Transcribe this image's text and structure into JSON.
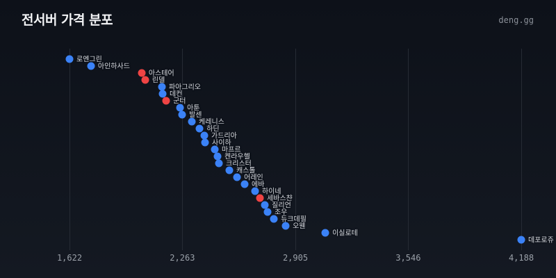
{
  "header": {
    "title": "전서버 가격 분포",
    "brand": "deng.gg"
  },
  "colors": {
    "background": "#0d1119",
    "normal": "#3b82f6",
    "highlight": "#ef4444",
    "grid": "#262b34",
    "tick_text": "#9aa0a8"
  },
  "chart_data": {
    "type": "scatter",
    "title": "전서버 가격 분포",
    "xlabel": "",
    "ylabel": "",
    "xlim": [
      1622,
      4188
    ],
    "xticks": [
      "1,622",
      "2,263",
      "2,905",
      "3,546",
      "4,188"
    ],
    "xtick_values": [
      1622,
      2263,
      2905,
      3546,
      4188
    ],
    "grid": "vertical",
    "legend": "none",
    "points": [
      {
        "name": "로엔그린",
        "value": 1622,
        "highlight": false
      },
      {
        "name": "아인하사드",
        "value": 1744,
        "highlight": false
      },
      {
        "name": "아스테어",
        "value": 2032,
        "highlight": true
      },
      {
        "name": "린델",
        "value": 2052,
        "highlight": true
      },
      {
        "name": "파아그리오",
        "value": 2147,
        "highlight": false
      },
      {
        "name": "데컨",
        "value": 2151,
        "highlight": false
      },
      {
        "name": "군터",
        "value": 2171,
        "highlight": true
      },
      {
        "name": "아툰",
        "value": 2250,
        "highlight": false
      },
      {
        "name": "발센",
        "value": 2262,
        "highlight": false
      },
      {
        "name": "케레니스",
        "value": 2317,
        "highlight": false
      },
      {
        "name": "하딘",
        "value": 2361,
        "highlight": false
      },
      {
        "name": "가드리아",
        "value": 2388,
        "highlight": false
      },
      {
        "name": "사이하",
        "value": 2392,
        "highlight": false
      },
      {
        "name": "마프르",
        "value": 2447,
        "highlight": false
      },
      {
        "name": "켄라우헬",
        "value": 2463,
        "highlight": false
      },
      {
        "name": "크리스터",
        "value": 2471,
        "highlight": false
      },
      {
        "name": "캐스톨",
        "value": 2530,
        "highlight": false
      },
      {
        "name": "어레인",
        "value": 2574,
        "highlight": false
      },
      {
        "name": "에바",
        "value": 2617,
        "highlight": false
      },
      {
        "name": "하이네",
        "value": 2676,
        "highlight": false
      },
      {
        "name": "세바스챤",
        "value": 2704,
        "highlight": true
      },
      {
        "name": "질리언",
        "value": 2732,
        "highlight": false
      },
      {
        "name": "조우",
        "value": 2747,
        "highlight": false
      },
      {
        "name": "듀크데필",
        "value": 2783,
        "highlight": false
      },
      {
        "name": "오웬",
        "value": 2850,
        "highlight": false
      },
      {
        "name": "이실로테",
        "value": 3075,
        "highlight": false
      },
      {
        "name": "데포로쥬",
        "value": 4188,
        "highlight": false
      }
    ]
  }
}
